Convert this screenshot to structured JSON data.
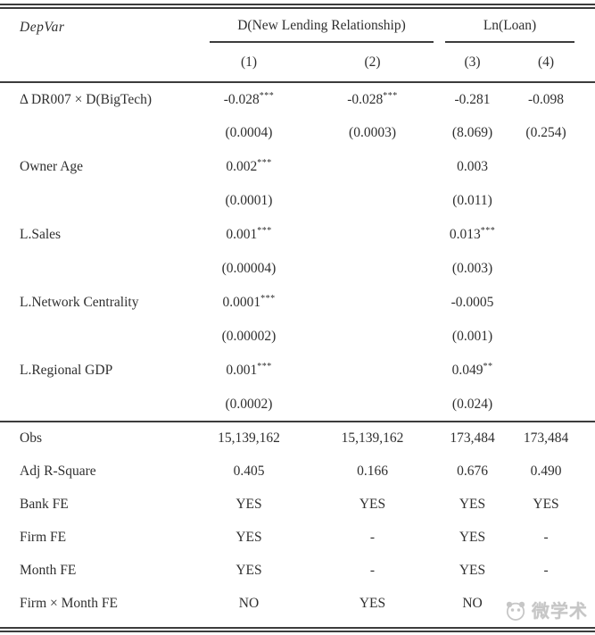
{
  "table": {
    "header": {
      "depvar_label": "DepVar",
      "groups": [
        {
          "label": "D(New Lending Relationship)",
          "cols": [
            "(1)",
            "(2)"
          ]
        },
        {
          "label": "Ln(Loan)",
          "cols": [
            "(3)",
            "(4)"
          ]
        }
      ]
    },
    "coef_rows": [
      {
        "label": "Δ DR007 × D(BigTech)",
        "values": [
          "-0.028***",
          "-0.028***",
          "-0.281",
          "-0.098"
        ]
      },
      {
        "label": "",
        "values": [
          "(0.0004)",
          "(0.0003)",
          "(8.069)",
          "(0.254)"
        ]
      },
      {
        "label": "Owner Age",
        "values": [
          "0.002***",
          "",
          "0.003",
          ""
        ]
      },
      {
        "label": "",
        "values": [
          "(0.0001)",
          "",
          "(0.011)",
          ""
        ]
      },
      {
        "label": "L.Sales",
        "values": [
          "0.001***",
          "",
          "0.013***",
          ""
        ]
      },
      {
        "label": "",
        "values": [
          "(0.00004)",
          "",
          "(0.003)",
          ""
        ]
      },
      {
        "label": "L.Network Centrality",
        "values": [
          "0.0001***",
          "",
          "-0.0005",
          ""
        ]
      },
      {
        "label": "",
        "values": [
          "(0.00002)",
          "",
          "(0.001)",
          ""
        ]
      },
      {
        "label": "L.Regional GDP",
        "values": [
          "0.001***",
          "",
          "0.049**",
          ""
        ]
      },
      {
        "label": "",
        "values": [
          "(0.0002)",
          "",
          "(0.024)",
          ""
        ]
      }
    ],
    "stat_rows": [
      {
        "label": "Obs",
        "values": [
          "15,139,162",
          "15,139,162",
          "173,484",
          "173,484"
        ]
      },
      {
        "label": "Adj R-Square",
        "values": [
          "0.405",
          "0.166",
          "0.676",
          "0.490"
        ]
      },
      {
        "label": "Bank FE",
        "values": [
          "YES",
          "YES",
          "YES",
          "YES"
        ]
      },
      {
        "label": "Firm FE",
        "values": [
          "YES",
          "-",
          "YES",
          "-"
        ]
      },
      {
        "label": "Month FE",
        "values": [
          "YES",
          "-",
          "YES",
          "-"
        ]
      },
      {
        "label": "Firm × Month FE",
        "values": [
          "NO",
          "YES",
          "NO",
          ""
        ]
      }
    ]
  },
  "watermark": {
    "text": "微学术",
    "icon": "panda-logo-icon",
    "color": "#c6c6c6"
  },
  "colors": {
    "text": "#2f2f2f",
    "rule": "#3c3c3c",
    "background": "#ffffff"
  }
}
